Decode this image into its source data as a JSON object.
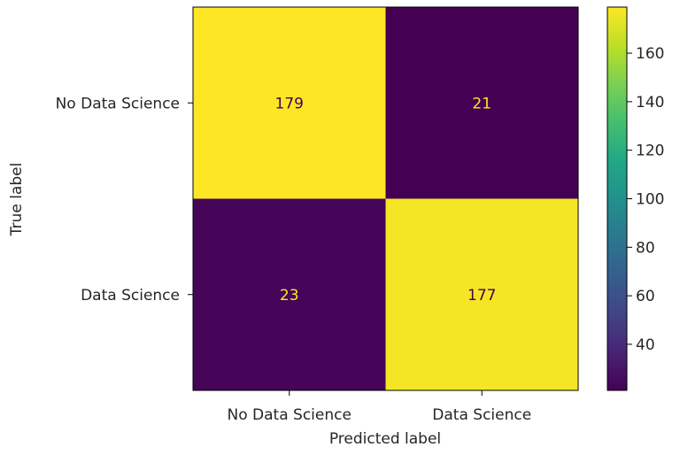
{
  "chart_data": {
    "type": "heatmap",
    "title": "",
    "xlabel": "Predicted label",
    "ylabel": "True label",
    "x_categories": [
      "No Data Science",
      "Data Science"
    ],
    "y_categories": [
      "No Data Science",
      "Data Science"
    ],
    "values": [
      [
        179,
        21
      ],
      [
        23,
        177
      ]
    ],
    "colormap": "viridis",
    "colorbar": {
      "ticks": [
        40,
        60,
        80,
        100,
        120,
        140,
        160
      ],
      "range": [
        21,
        179
      ]
    },
    "colors": {
      "high": "#fde725",
      "low": "#440154",
      "text_on_high": "#440154",
      "text_on_low": "#fde725"
    }
  }
}
